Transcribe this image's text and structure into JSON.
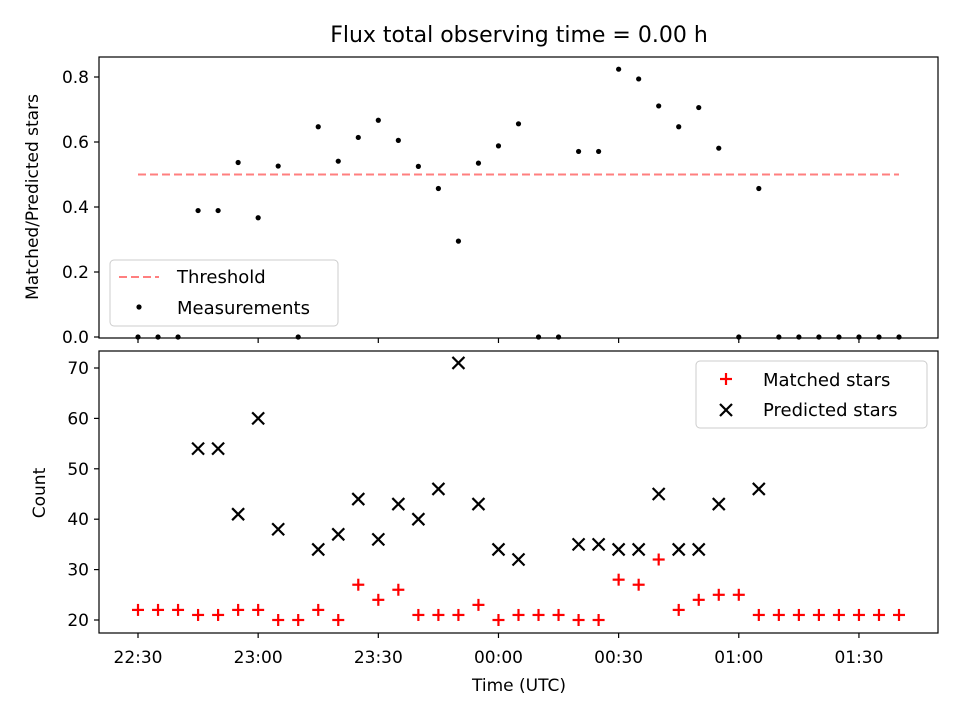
{
  "chart_data": [
    {
      "type": "scatter",
      "title": "Flux total observing time = 0.00 h",
      "ylabel": "Matched/Predicted stars",
      "xlabel": "",
      "ylim": [
        0,
        0.86
      ],
      "yticks": [
        "0.0",
        "0.2",
        "0.4",
        "0.6",
        "0.8"
      ],
      "legend_position": "lower-left",
      "x": [
        "22:30",
        "22:35",
        "22:40",
        "22:45",
        "22:50",
        "22:55",
        "23:00",
        "23:05",
        "23:10",
        "23:15",
        "23:20",
        "23:25",
        "23:30",
        "23:35",
        "23:40",
        "23:45",
        "23:50",
        "23:55",
        "00:00",
        "00:05",
        "00:10",
        "00:15",
        "00:20",
        "00:25",
        "00:30",
        "00:35",
        "00:40",
        "00:45",
        "00:50",
        "00:55",
        "01:00",
        "01:05",
        "01:10",
        "01:15",
        "01:20",
        "01:25",
        "01:30",
        "01:35",
        "01:40"
      ],
      "series": [
        {
          "name": "Threshold",
          "style": "dashed-line",
          "color": "#ff7f7f",
          "values": [
            0.5,
            0.5
          ],
          "x_range": [
            "22:30",
            "01:40"
          ]
        },
        {
          "name": "Measurements",
          "style": "dot",
          "color": "#000000",
          "values": [
            0,
            0,
            0,
            0.389,
            0.389,
            0.537,
            0.367,
            0.526,
            0,
            0.647,
            0.541,
            0.614,
            0.667,
            0.605,
            0.525,
            0.457,
            0.295,
            0.535,
            0.588,
            0.656,
            0,
            0,
            0.571,
            0.571,
            0.824,
            0.794,
            0.711,
            0.647,
            0.706,
            0.581,
            0,
            0.457,
            0,
            0,
            0,
            0,
            0,
            0,
            0
          ]
        }
      ]
    },
    {
      "type": "scatter",
      "title": "",
      "ylabel": "Count",
      "xlabel": "Time (UTC)",
      "ylim": [
        17.5,
        73.5
      ],
      "yticks": [
        "20",
        "30",
        "40",
        "50",
        "60",
        "70"
      ],
      "xticks": [
        "22:30",
        "23:00",
        "23:30",
        "00:00",
        "00:30",
        "01:00",
        "01:30"
      ],
      "legend_position": "upper-right",
      "x": [
        "22:30",
        "22:35",
        "22:40",
        "22:45",
        "22:50",
        "22:55",
        "23:00",
        "23:05",
        "23:10",
        "23:15",
        "23:20",
        "23:25",
        "23:30",
        "23:35",
        "23:40",
        "23:45",
        "23:50",
        "23:55",
        "00:00",
        "00:05",
        "00:10",
        "00:15",
        "00:20",
        "00:25",
        "00:30",
        "00:35",
        "00:40",
        "00:45",
        "00:50",
        "00:55",
        "01:00",
        "01:05",
        "01:10",
        "01:15",
        "01:20",
        "01:25",
        "01:30",
        "01:35",
        "01:40"
      ],
      "series": [
        {
          "name": "Matched stars",
          "marker": "plus",
          "color": "#ff0000",
          "values": [
            22,
            22,
            22,
            21,
            21,
            22,
            22,
            20,
            20,
            22,
            20,
            27,
            24,
            26,
            21,
            21,
            21,
            23,
            20,
            21,
            21,
            21,
            20,
            20,
            28,
            27,
            32,
            22,
            24,
            25,
            25,
            21,
            21,
            21,
            21,
            21,
            21,
            21,
            21
          ]
        },
        {
          "name": "Predicted stars",
          "marker": "x",
          "color": "#000000",
          "values": [
            null,
            null,
            null,
            54,
            54,
            41,
            60,
            38,
            null,
            34,
            37,
            44,
            36,
            43,
            40,
            46,
            71,
            43,
            34,
            32,
            null,
            null,
            35,
            35,
            34,
            34,
            45,
            34,
            34,
            43,
            null,
            46,
            null,
            null,
            null,
            null,
            null,
            null,
            null
          ]
        }
      ]
    }
  ]
}
